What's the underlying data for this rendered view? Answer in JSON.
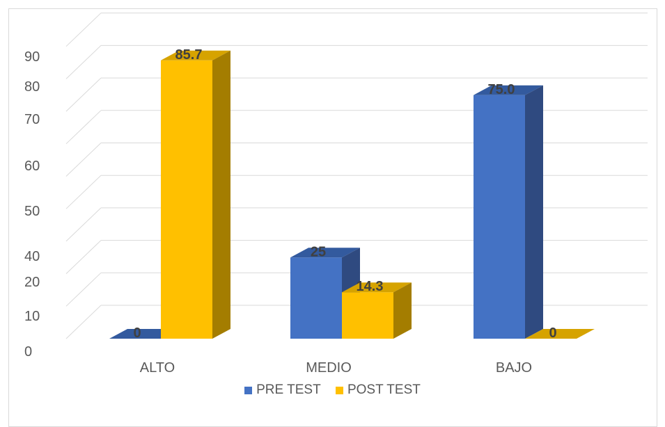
{
  "chart_data": {
    "type": "bar",
    "categories": [
      "ALTO",
      "MEDIO",
      "BAJO"
    ],
    "series": [
      {
        "name": "PRE TEST",
        "values": [
          0,
          25,
          75.0
        ],
        "labels": [
          "0",
          "25",
          "75.0"
        ],
        "color": "#4472c4",
        "side_color": "#2f4a80",
        "top_color": "#335a9e"
      },
      {
        "name": "POST TEST",
        "values": [
          85.7,
          14.3,
          0
        ],
        "labels": [
          "85.7",
          "14.3",
          "0"
        ],
        "color": "#ffc000",
        "side_color": "#a47d00",
        "top_color": "#d6a300"
      }
    ],
    "y_ticks": [
      "0",
      "10",
      "20",
      "40",
      "50",
      "60",
      "70",
      "80",
      "90"
    ],
    "ylim": [
      0,
      100
    ],
    "grid": true,
    "legend": "bottom"
  }
}
